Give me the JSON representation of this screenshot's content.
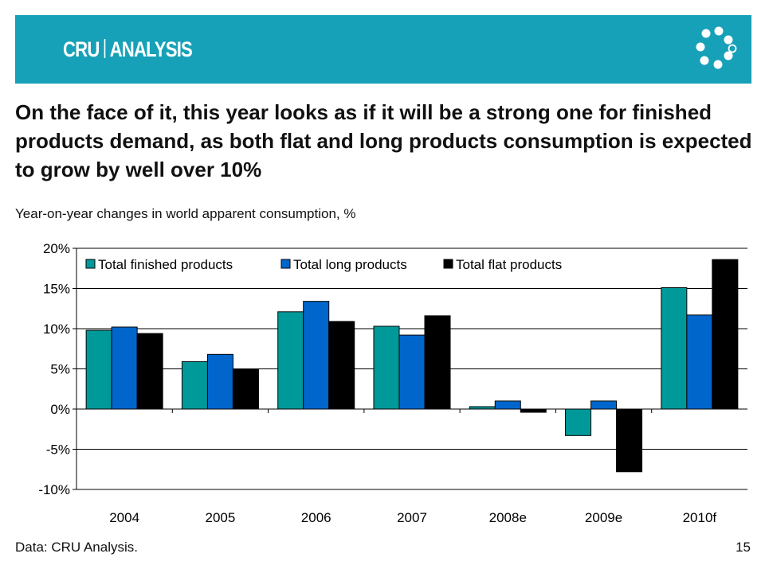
{
  "header": {
    "brand_left": "CRU",
    "brand_right": "ANALYSIS",
    "colors": {
      "band": "#16a1b8",
      "logo": "#ffffff"
    },
    "logo_icon": "ring-of-dots-icon"
  },
  "headline": "On the face of it, this year looks as if it will be a strong one for finished products demand, as both flat and long products consumption is expected to grow by well over 10%",
  "subtitle": "Year-on-year changes in world apparent consumption, %",
  "footer": {
    "source": "Data: CRU Analysis.",
    "page_number": "15"
  },
  "chart_data": {
    "type": "bar",
    "title": "",
    "xlabel": "",
    "ylabel": "",
    "categories": [
      "2004",
      "2005",
      "2006",
      "2007",
      "2008e",
      "2009e",
      "2010f"
    ],
    "series": [
      {
        "name": "Total finished products",
        "color": "#009999",
        "values": [
          9.8,
          5.9,
          12.1,
          10.3,
          0.3,
          -3.3,
          15.1
        ]
      },
      {
        "name": "Total long products",
        "color": "#0066cc",
        "values": [
          10.2,
          6.8,
          13.4,
          9.2,
          1.0,
          1.0,
          11.7
        ]
      },
      {
        "name": "Total flat products",
        "color": "#000000",
        "values": [
          9.4,
          5.0,
          10.9,
          11.6,
          -0.4,
          -7.8,
          18.6
        ]
      }
    ],
    "ylim": [
      -10,
      20
    ],
    "yticks": [
      -10,
      -5,
      0,
      5,
      10,
      15,
      20
    ],
    "ytick_labels": [
      "-10%",
      "-5%",
      "0%",
      "5%",
      "10%",
      "15%",
      "20%"
    ],
    "grid": true,
    "legend": "top"
  }
}
